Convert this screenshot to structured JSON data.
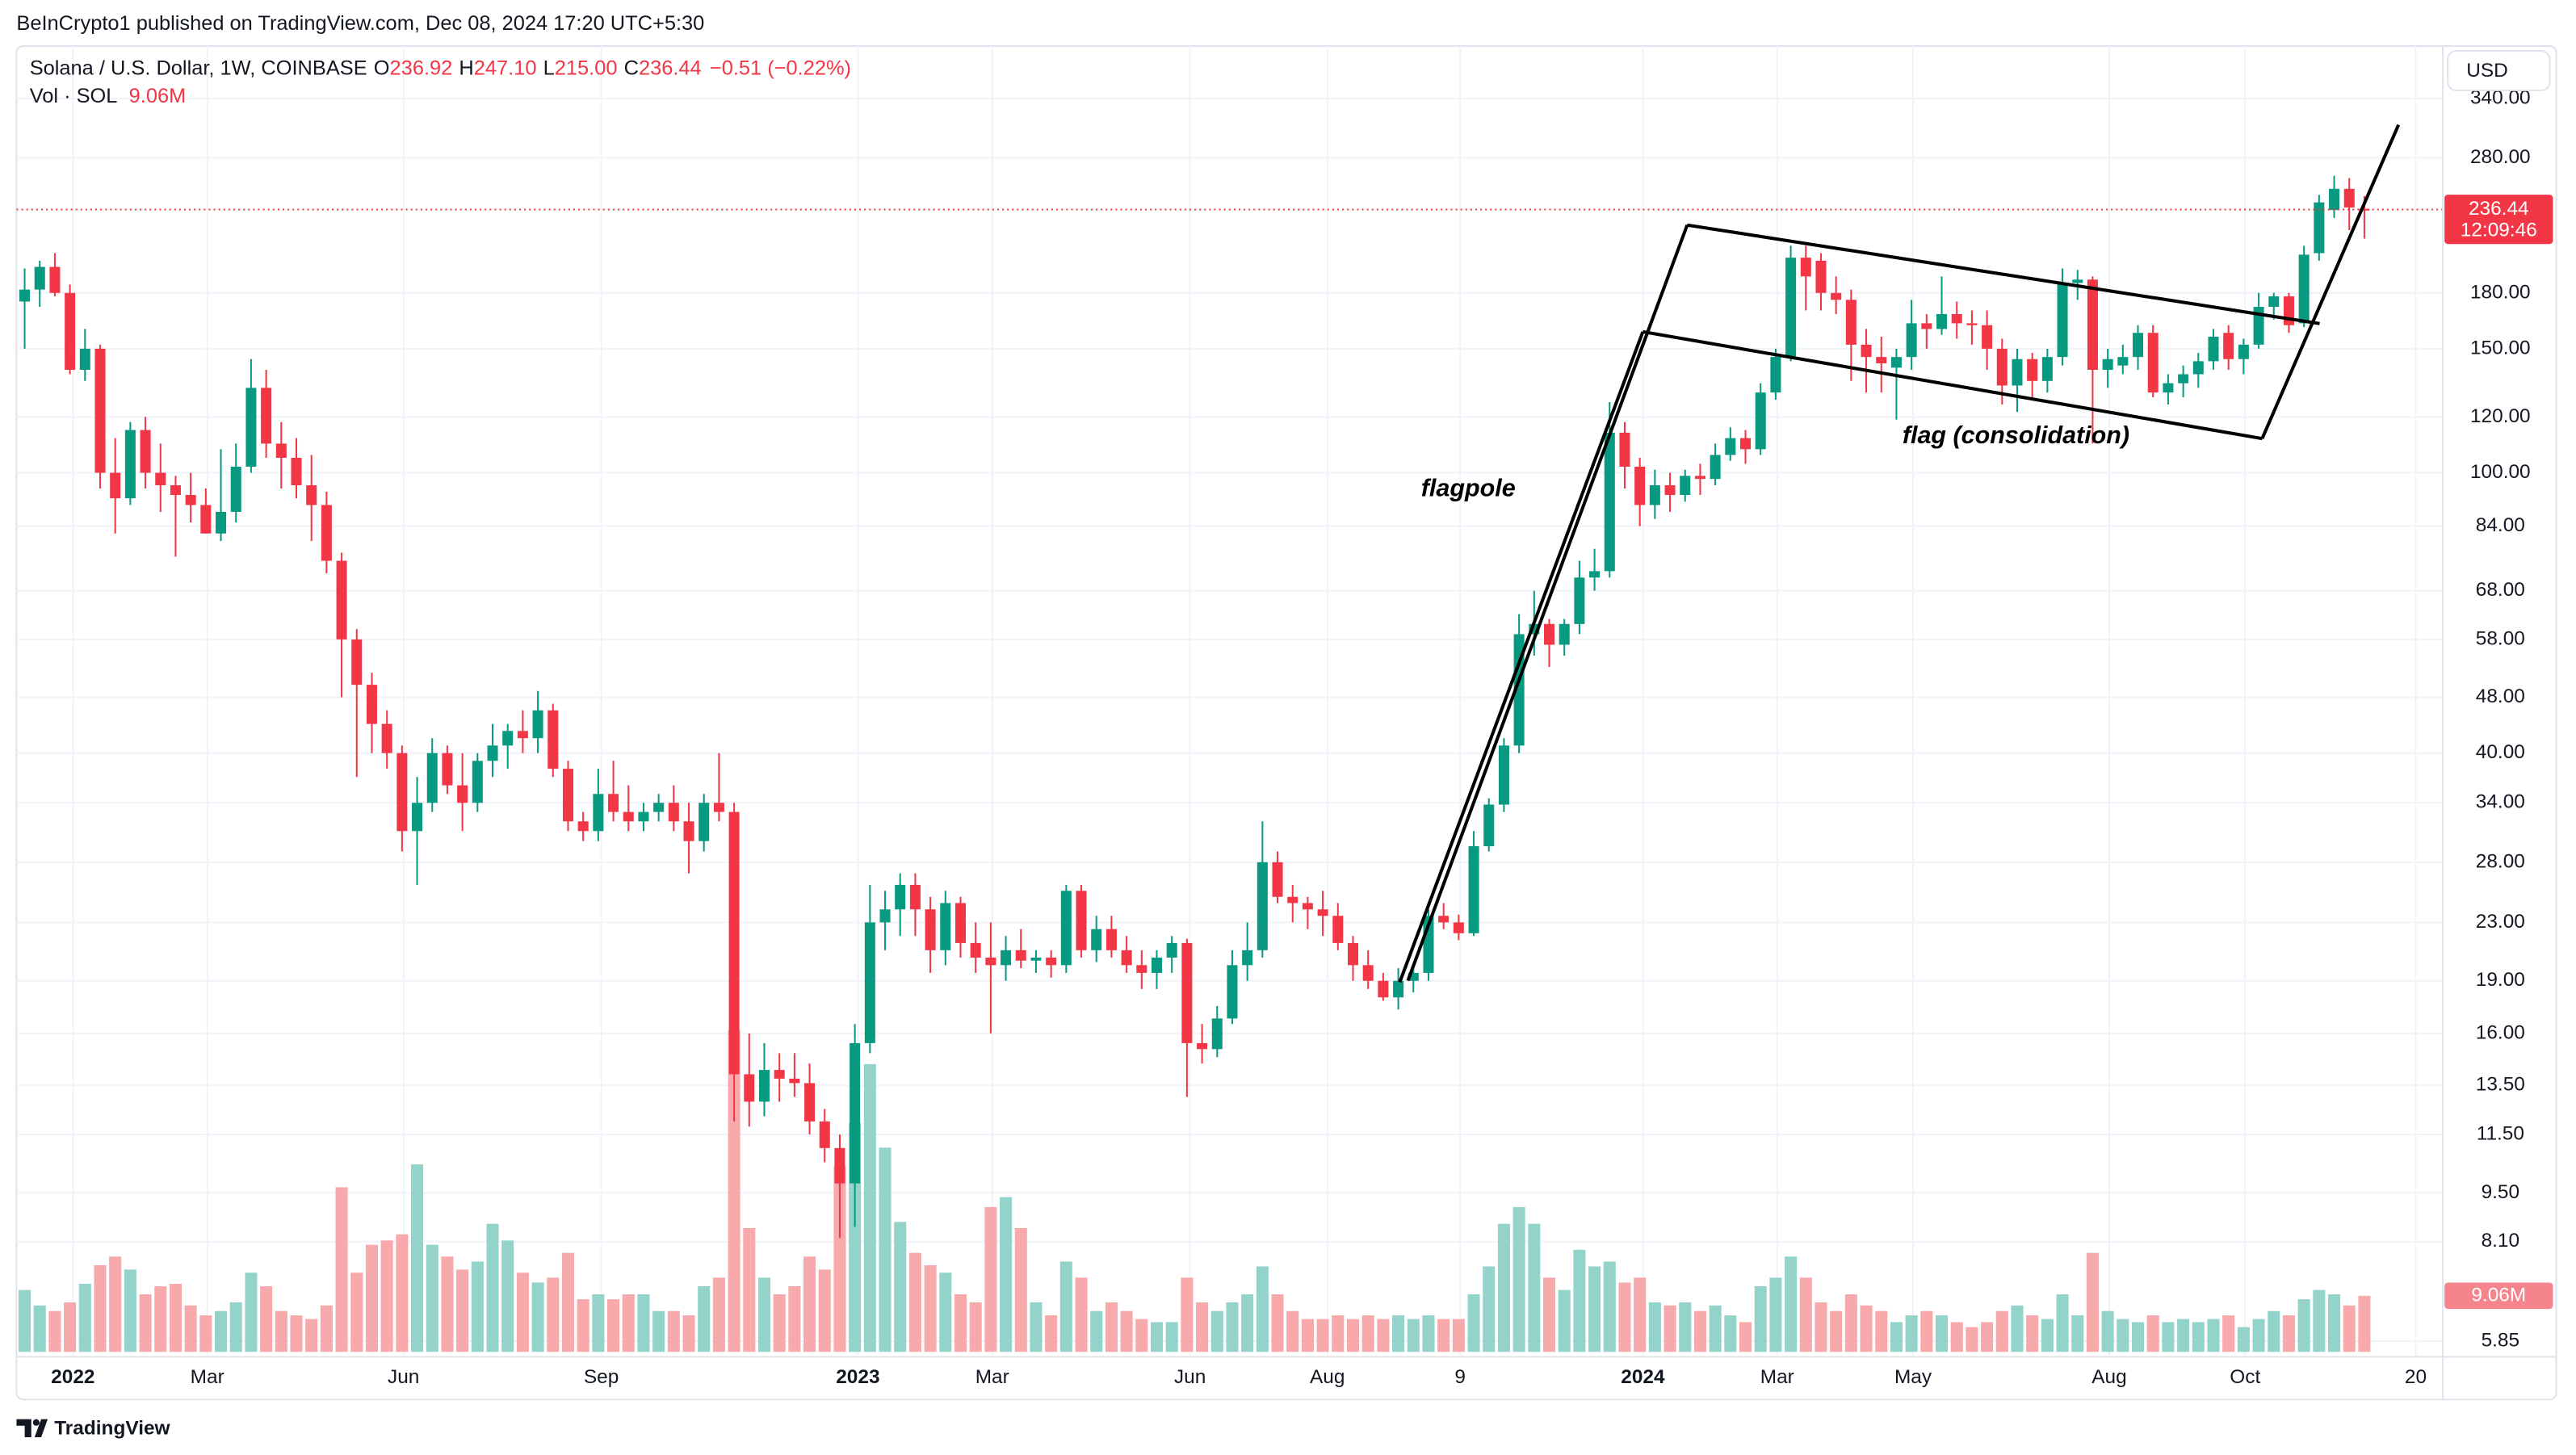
{
  "chart_data": {
    "type": "candlestick",
    "legend": {
      "published": "BeInCrypto1 published on TradingView.com, Dec 08, 2024 17:20 UTC+5:30",
      "symbol": "Solana / U.S. Dollar, 1W, COINBASE",
      "o_label": "O",
      "o": "236.92",
      "h_label": "H",
      "h": "247.10",
      "l_label": "L",
      "l": "215.00",
      "c_label": "C",
      "c": "236.44",
      "change": "−0.51 (−0.22%)",
      "vol_label": "Vol · SOL",
      "vol": "9.06M"
    },
    "currency": "USD",
    "countdown": "12:09:46",
    "branding": "TradingView",
    "annotations": {
      "flagpole": "flagpole",
      "flag": "flag (consolidation)"
    },
    "log_scale": true,
    "grid": true,
    "colors": {
      "up": "#089981",
      "down": "#f23645",
      "volume_up": "#94d3ca",
      "volume_down": "#f7a9ab",
      "price_line": "#f23645"
    },
    "xlim": [
      -0.54,
      160.2
    ],
    "xticks": [
      {
        "value": 3.2,
        "label": "2022"
      },
      {
        "value": 12.1,
        "label": "Mar"
      },
      {
        "value": 25.1,
        "label": "Jun"
      },
      {
        "value": 38.2,
        "label": "Sep"
      },
      {
        "value": 55.2,
        "label": "2023"
      },
      {
        "value": 64.1,
        "label": "Mar"
      },
      {
        "value": 77.2,
        "label": "Jun"
      },
      {
        "value": 86.3,
        "label": "Aug"
      },
      {
        "value": 95.1,
        "label": "9"
      },
      {
        "value": 107.2,
        "label": "2024"
      },
      {
        "value": 116.1,
        "label": "Mar"
      },
      {
        "value": 125.1,
        "label": "May"
      },
      {
        "value": 138.1,
        "label": "Aug"
      },
      {
        "value": 147.1,
        "label": "Oct"
      },
      {
        "value": 158.4,
        "label": "20"
      }
    ],
    "ylim": [
      5.56,
      403.5
    ],
    "yticks": [
      {
        "value": 340,
        "label": "340.00"
      },
      {
        "value": 280,
        "label": "280.00"
      },
      {
        "value": 180,
        "label": "180.00"
      },
      {
        "value": 150,
        "label": "150.00"
      },
      {
        "value": 120,
        "label": "120.00"
      },
      {
        "value": 100,
        "label": "100.00"
      },
      {
        "value": 84,
        "label": "84.00"
      },
      {
        "value": 68,
        "label": "68.00"
      },
      {
        "value": 58,
        "label": "58.00"
      },
      {
        "value": 48,
        "label": "48.00"
      },
      {
        "value": 40,
        "label": "40.00"
      },
      {
        "value": 34,
        "label": "34.00"
      },
      {
        "value": 28,
        "label": "28.00"
      },
      {
        "value": 23,
        "label": "23.00"
      },
      {
        "value": 19,
        "label": "19.00"
      },
      {
        "value": 16,
        "label": "16.00"
      },
      {
        "value": 13.5,
        "label": "13.50"
      },
      {
        "value": 11.5,
        "label": "11.50"
      },
      {
        "value": 9.5,
        "label": "9.50"
      },
      {
        "value": 8.1,
        "label": "8.10"
      },
      {
        "value": 5.85,
        "label": "5.85"
      }
    ],
    "volume_lim": [
      0,
      60
    ],
    "open": [
      175,
      182,
      196,
      180,
      140,
      150,
      100,
      92,
      115,
      100,
      96,
      93,
      90,
      82,
      88,
      102,
      132,
      110,
      105,
      96,
      90,
      75,
      58,
      50,
      44,
      40,
      31,
      34,
      40,
      36,
      34,
      39,
      41,
      43,
      42,
      46,
      38,
      32,
      31,
      35,
      33,
      32,
      33,
      34,
      32,
      30,
      34,
      33,
      14,
      12.8,
      14.2,
      13.8,
      13.6,
      12,
      11,
      9.8,
      15.5,
      23,
      24,
      26,
      24,
      21,
      24.5,
      21.5,
      20.5,
      20,
      21,
      20.3,
      20.5,
      20,
      25.5,
      21,
      22.5,
      21,
      20,
      19.5,
      20.5,
      21.5,
      15.5,
      15.2,
      16.8,
      20,
      21,
      28,
      25,
      24.5,
      24,
      23.5,
      21.5,
      20,
      19,
      18,
      19,
      19.5,
      23.5,
      23,
      22.2,
      29.5,
      33.8,
      41,
      59,
      61,
      57,
      61,
      71,
      72.5,
      114,
      102,
      90,
      96,
      93,
      99,
      98,
      106,
      112,
      108,
      130,
      146,
      202,
      200,
      180,
      176,
      152,
      146,
      141,
      146,
      163,
      160,
      168,
      163,
      162,
      150,
      133,
      145,
      135,
      146,
      186,
      188,
      140,
      142,
      146,
      158,
      130,
      134,
      138,
      144,
      158,
      145,
      152,
      172,
      178,
      163,
      205,
      236,
      253,
      236.92
    ],
    "high": [
      195,
      200,
      205,
      185,
      160,
      152,
      112,
      118,
      120,
      110,
      99,
      100,
      95,
      108,
      110,
      145,
      140,
      118,
      112,
      106,
      94,
      77,
      60,
      52,
      46,
      41,
      37,
      42,
      41,
      40,
      40,
      44,
      44,
      46,
      49,
      47,
      39,
      33,
      38,
      39,
      36,
      34,
      35,
      36,
      34,
      35,
      40,
      34,
      16,
      15.5,
      15,
      15,
      14.5,
      12.5,
      11.5,
      16.5,
      26,
      25.5,
      27,
      27,
      25,
      25.5,
      25,
      23,
      23,
      22,
      22.5,
      21,
      21,
      26,
      26,
      23.5,
      23.5,
      22,
      21,
      21,
      22,
      21.8,
      16.5,
      17.5,
      21,
      23,
      32,
      29,
      26,
      25,
      25.5,
      24.5,
      22,
      21,
      19.5,
      19.8,
      20,
      24,
      24.5,
      23.6,
      31,
      34.5,
      42,
      63,
      68,
      62,
      62,
      75,
      78,
      126,
      118,
      105,
      101,
      100,
      101,
      103,
      110,
      116,
      115,
      134,
      150,
      210,
      210,
      205,
      190,
      182,
      160,
      156,
      150,
      176,
      168,
      190,
      175,
      170,
      170,
      155,
      150,
      148,
      150,
      195,
      194,
      190,
      150,
      152,
      162,
      162,
      138,
      142,
      148,
      160,
      162,
      155,
      180,
      180,
      180,
      210,
      248,
      264,
      262,
      247.1
    ],
    "low": [
      150,
      172,
      178,
      138,
      135,
      95,
      82,
      90,
      95,
      88,
      76,
      85,
      82,
      80,
      85,
      100,
      105,
      95,
      92,
      80,
      72,
      48,
      37,
      40,
      38,
      29,
      26,
      33,
      35,
      31,
      33,
      37,
      38,
      40,
      40,
      37,
      31,
      30,
      30,
      32,
      31,
      31,
      32,
      31,
      27,
      29,
      32,
      12,
      11.8,
      12.2,
      12.8,
      13,
      11.5,
      10.5,
      8.2,
      8.5,
      15,
      21,
      22,
      22,
      19.5,
      20,
      20.5,
      19.5,
      16,
      19,
      19.8,
      19.5,
      19.2,
      19.5,
      20.5,
      20.2,
      20.5,
      19.5,
      18.5,
      18.5,
      19.5,
      13,
      14.5,
      14.8,
      16.5,
      19,
      20.5,
      24.5,
      23,
      22.5,
      22,
      21,
      19,
      18.5,
      17.8,
      17.3,
      18.3,
      19,
      22.5,
      21.7,
      22,
      29,
      33,
      40,
      55,
      53,
      55,
      59,
      68,
      71,
      95,
      84,
      86,
      88,
      91,
      93,
      96,
      104,
      103,
      106,
      127,
      144,
      170,
      170,
      168,
      135,
      130,
      130,
      119,
      140,
      150,
      157,
      155,
      152,
      140,
      125,
      122,
      128,
      130,
      142,
      176,
      110,
      132,
      138,
      140,
      128,
      125,
      128,
      132,
      140,
      140,
      138,
      150,
      165,
      158,
      161,
      200,
      230,
      221,
      215
    ],
    "close": [
      182,
      196,
      180,
      140,
      150,
      100,
      92,
      115,
      100,
      96,
      93,
      90,
      82,
      88,
      102,
      132,
      110,
      105,
      96,
      90,
      75,
      58,
      50,
      44,
      40,
      31,
      34,
      40,
      36,
      34,
      39,
      41,
      43,
      42,
      46,
      38,
      32,
      31,
      35,
      33,
      32,
      33,
      34,
      32,
      30,
      34,
      33,
      14,
      12.8,
      14.2,
      13.8,
      13.6,
      12,
      11,
      9.8,
      15.5,
      23,
      24,
      26,
      24,
      21,
      24.5,
      21.5,
      20.5,
      20,
      21,
      20.3,
      20.5,
      20,
      25.5,
      21,
      22.5,
      21,
      20,
      19.5,
      20.5,
      21.5,
      15.5,
      15.2,
      16.8,
      20,
      21,
      28,
      25,
      24.5,
      24,
      23.5,
      21.5,
      20,
      19,
      18,
      19,
      19.5,
      23.5,
      23,
      22.2,
      29.5,
      33.8,
      41,
      59,
      61,
      57,
      61,
      71,
      72.5,
      114,
      102,
      90,
      96,
      93,
      99,
      98,
      106,
      112,
      108,
      130,
      146,
      202,
      190,
      180,
      176,
      152,
      146,
      143,
      146,
      163,
      160,
      168,
      163,
      162,
      150,
      133,
      145,
      135,
      146,
      186,
      188,
      140,
      145,
      146,
      158,
      130,
      134,
      138,
      144,
      156,
      145,
      152,
      172,
      178,
      162,
      204,
      242,
      253,
      238,
      236.44
    ],
    "volume": [
      10,
      7.5,
      6.6,
      8,
      11,
      14,
      15.4,
      13.3,
      9.3,
      10.6,
      11,
      7.5,
      5.9,
      6.6,
      8,
      12.8,
      10.6,
      6.6,
      5.9,
      5.3,
      7.5,
      26.6,
      12.8,
      17.3,
      18,
      19,
      30.3,
      17.3,
      15.4,
      13.3,
      14.6,
      20.7,
      18,
      12.8,
      11.2,
      12,
      16,
      8.5,
      9.3,
      8.5,
      9.3,
      9.3,
      6.6,
      6.6,
      5.9,
      10.6,
      12,
      52,
      20,
      12,
      9.3,
      10.6,
      15.4,
      13.3,
      30,
      37,
      46.5,
      33,
      21,
      16,
      14,
      12.8,
      9.3,
      8,
      23.4,
      25,
      20,
      8,
      5.9,
      14.6,
      12,
      6.6,
      8,
      6.6,
      5.3,
      4.8,
      4.8,
      12,
      8,
      6.6,
      8,
      9.3,
      13.8,
      9.3,
      6.6,
      5.3,
      5.3,
      5.9,
      5.3,
      5.9,
      5.3,
      5.9,
      5.3,
      5.9,
      5.3,
      5.3,
      9.3,
      13.8,
      20.7,
      23.4,
      20.7,
      12,
      10,
      16.5,
      13.8,
      14.6,
      11.2,
      12,
      8,
      7.5,
      8,
      6.6,
      7.5,
      5.9,
      4.8,
      10.6,
      12,
      15.4,
      12,
      8,
      6.6,
      9.3,
      7.5,
      6.6,
      4.8,
      5.9,
      6.6,
      5.9,
      4.8,
      4,
      4.8,
      6.6,
      7.5,
      5.9,
      5.3,
      9.3,
      5.9,
      16,
      6.6,
      5.3,
      4.8,
      5.9,
      4.8,
      5.3,
      4.8,
      5.3,
      5.9,
      4,
      5.3,
      6.6,
      5.9,
      8.5,
      10,
      9.3,
      7.5,
      9.06
    ]
  }
}
